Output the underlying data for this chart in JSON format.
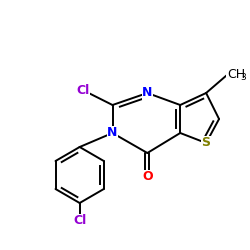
{
  "background_color": "#ffffff",
  "figsize": [
    2.5,
    2.5
  ],
  "dpi": 100,
  "bond_color": "#000000",
  "atom_colors": {
    "N": "#0000ff",
    "O": "#ff0000",
    "S": "#808000",
    "Cl": "#9400D3",
    "C": "#000000"
  },
  "label_fontsize": 9,
  "label_fontsize_sub": 6.5,
  "lw": 1.4
}
